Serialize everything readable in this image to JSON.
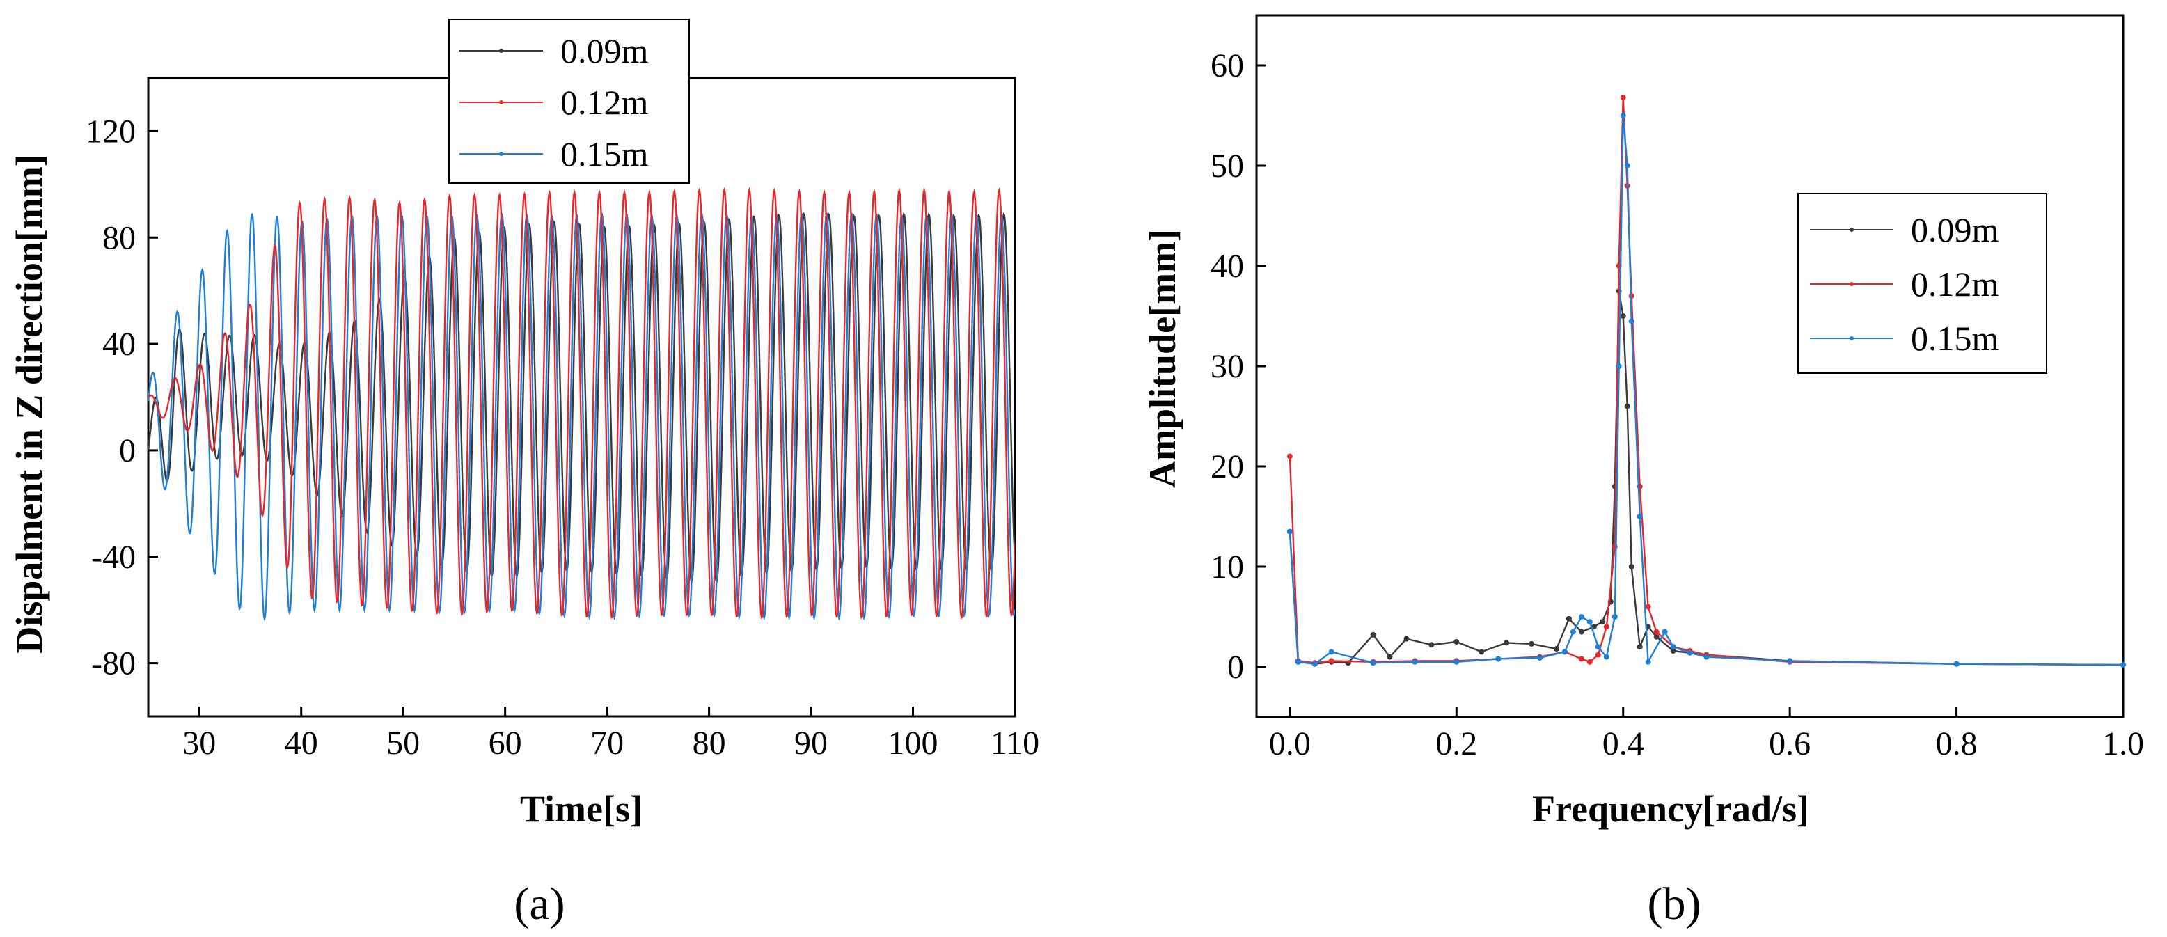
{
  "chart_data": [
    {
      "type": "line",
      "panel_label": "(a)",
      "xlabel": "Time[s]",
      "ylabel": "Dispalment in Z direction[mm]",
      "xlim": [
        25,
        110
      ],
      "ylim": [
        -100,
        140
      ],
      "xticks": [
        30,
        40,
        50,
        60,
        70,
        80,
        90,
        100,
        110
      ],
      "yticks": [
        -80,
        -40,
        0,
        40,
        80,
        120
      ],
      "legend_position": "top-center",
      "series": [
        {
          "name": "0.09m",
          "color": "#3a3a3a",
          "x": [
            25,
            27.5,
            30,
            32.5,
            35,
            37.5,
            40,
            45,
            50,
            55,
            60,
            65,
            70,
            75,
            80,
            85,
            90,
            95,
            100,
            105,
            110
          ],
          "max": [
            10,
            46,
            44,
            43,
            44,
            40,
            40,
            48,
            65,
            80,
            84,
            86,
            84,
            85,
            86,
            88,
            89,
            88,
            89,
            88,
            89
          ],
          "min": [
            -10,
            -12,
            -6,
            -2,
            -2,
            -5,
            -12,
            -28,
            -38,
            -45,
            -48,
            -45,
            -46,
            -48,
            -50,
            -46,
            -45,
            -44,
            -45,
            -45,
            -45
          ],
          "period": 2.45
        },
        {
          "name": "0.12m",
          "color": "#e8272b",
          "x": [
            25,
            27.5,
            30,
            32.5,
            35,
            37.5,
            40,
            45,
            50,
            55,
            60,
            65,
            70,
            75,
            80,
            85,
            90,
            95,
            100,
            105,
            110
          ],
          "max": [
            20,
            27,
            32,
            44,
            55,
            78,
            94,
            95,
            93,
            96,
            96,
            97,
            97,
            97,
            98,
            98,
            97,
            97,
            98,
            97,
            98
          ],
          "min": [
            15,
            10,
            5,
            -5,
            -15,
            -35,
            -55,
            -58,
            -60,
            -62,
            -60,
            -62,
            -63,
            -62,
            -62,
            -63,
            -62,
            -63,
            -62,
            -63,
            -62
          ],
          "period": 2.45
        },
        {
          "name": "0.15m",
          "color": "#1f7fd6",
          "x": [
            25,
            27.5,
            30,
            32.5,
            35,
            37.5,
            40,
            45,
            50,
            55,
            60,
            65,
            70,
            75,
            80,
            85,
            90,
            95,
            100,
            105,
            110
          ],
          "max": [
            25,
            50,
            66,
            82,
            89,
            88,
            86,
            88,
            88,
            88,
            89,
            88,
            89,
            88,
            89,
            88,
            89,
            89,
            88,
            89,
            88
          ],
          "min": [
            -5,
            -20,
            -38,
            -52,
            -65,
            -62,
            -60,
            -60,
            -60,
            -61,
            -60,
            -62,
            -63,
            -62,
            -62,
            -63,
            -63,
            -63,
            -62,
            -62,
            -62
          ],
          "period": 2.45
        }
      ]
    },
    {
      "type": "line",
      "panel_label": "(b)",
      "xlabel": "Frequency[rad/s]",
      "ylabel": "Amplitude[mm]",
      "xlim": [
        -0.04,
        1.0
      ],
      "ylim": [
        -5,
        65
      ],
      "xticks": [
        0.0,
        0.2,
        0.4,
        0.6,
        0.8,
        1.0
      ],
      "yticks": [
        0,
        10,
        20,
        30,
        40,
        50,
        60
      ],
      "legend_position": "right",
      "series": [
        {
          "name": "0.09m",
          "color": "#3a3a3a",
          "x": [
            0.0,
            0.01,
            0.03,
            0.05,
            0.07,
            0.1,
            0.12,
            0.14,
            0.17,
            0.2,
            0.23,
            0.26,
            0.29,
            0.32,
            0.335,
            0.35,
            0.365,
            0.375,
            0.385,
            0.39,
            0.395,
            0.4,
            0.405,
            0.41,
            0.42,
            0.43,
            0.44,
            0.46,
            0.5,
            0.6,
            0.8,
            1.0
          ],
          "y": [
            13.5,
            0.5,
            0.3,
            0.5,
            0.4,
            3.2,
            1.0,
            2.8,
            2.2,
            2.5,
            1.5,
            2.4,
            2.3,
            1.8,
            4.8,
            3.5,
            4.0,
            4.5,
            6.5,
            18.0,
            37.5,
            35.0,
            26.0,
            10.0,
            2.0,
            4.0,
            3.0,
            1.6,
            1.2,
            0.6,
            0.3,
            0.2
          ]
        },
        {
          "name": "0.12m",
          "color": "#e8272b",
          "x": [
            0.0,
            0.01,
            0.03,
            0.05,
            0.1,
            0.15,
            0.2,
            0.25,
            0.3,
            0.33,
            0.35,
            0.36,
            0.37,
            0.38,
            0.39,
            0.395,
            0.4,
            0.405,
            0.41,
            0.42,
            0.43,
            0.44,
            0.46,
            0.48,
            0.5,
            0.6,
            0.8,
            1.0
          ],
          "y": [
            21.0,
            0.6,
            0.4,
            0.6,
            0.5,
            0.6,
            0.6,
            0.8,
            1.0,
            1.5,
            0.8,
            0.5,
            1.2,
            4.0,
            12.0,
            40.0,
            56.8,
            48.0,
            37.0,
            18.0,
            6.0,
            3.5,
            2.0,
            1.6,
            1.2,
            0.5,
            0.3,
            0.2
          ]
        },
        {
          "name": "0.15m",
          "color": "#1f7fd6",
          "x": [
            0.0,
            0.01,
            0.03,
            0.05,
            0.1,
            0.15,
            0.2,
            0.25,
            0.3,
            0.33,
            0.34,
            0.35,
            0.36,
            0.37,
            0.38,
            0.39,
            0.395,
            0.4,
            0.405,
            0.41,
            0.42,
            0.43,
            0.45,
            0.46,
            0.48,
            0.5,
            0.6,
            0.8,
            1.0
          ],
          "y": [
            13.5,
            0.5,
            0.3,
            1.5,
            0.4,
            0.5,
            0.5,
            0.8,
            0.9,
            1.5,
            3.5,
            5.0,
            4.5,
            2.0,
            1.0,
            5.0,
            30.0,
            55.0,
            50.0,
            34.5,
            15.0,
            0.5,
            3.5,
            2.0,
            1.4,
            1.0,
            0.6,
            0.3,
            0.2
          ]
        }
      ]
    }
  ]
}
